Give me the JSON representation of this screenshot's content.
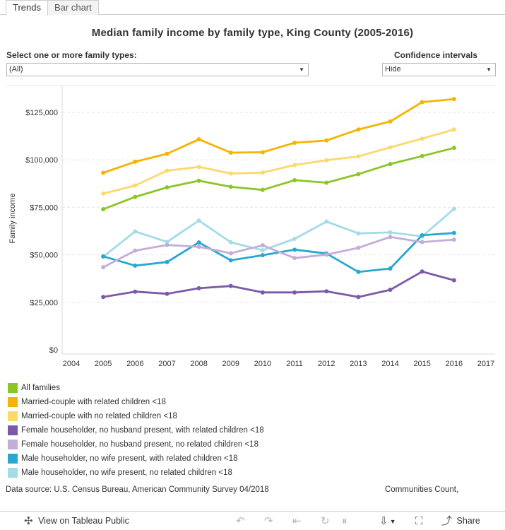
{
  "tabs": [
    {
      "label": "Trends"
    },
    {
      "label": "Bar chart"
    }
  ],
  "title": "Median family income by family type, King County (2005-2016)",
  "filters": {
    "family_label": "Select one or more family types:",
    "family_value": "(All)",
    "ci_label": "Confidence intervals",
    "ci_value": "Hide"
  },
  "chart_data": {
    "type": "line",
    "x": [
      2005,
      2006,
      2007,
      2008,
      2009,
      2010,
      2011,
      2012,
      2013,
      2014,
      2015,
      2016
    ],
    "xlim": [
      2004,
      2017
    ],
    "x_ticks": [
      "2004",
      "2005",
      "2006",
      "2007",
      "2008",
      "2009",
      "2010",
      "2011",
      "2012",
      "2013",
      "2014",
      "2015",
      "2016",
      "2017"
    ],
    "ylim": [
      0,
      140000
    ],
    "y_ticks": [
      "$0",
      "$25,000",
      "$50,000",
      "$75,000",
      "$100,000",
      "$125,000"
    ],
    "y_tick_values": [
      0,
      25000,
      50000,
      75000,
      100000,
      125000
    ],
    "ylabel": "Family income",
    "xlabel": "",
    "grid": "horizontal dashed",
    "legend_position": "bottom-left",
    "series": [
      {
        "name": "All families",
        "color": "#8cc626",
        "values": [
          74000,
          80500,
          85500,
          89000,
          85800,
          84200,
          89300,
          88000,
          92500,
          97800,
          102000,
          106300
        ]
      },
      {
        "name": "Married-couple with related children <18",
        "color": "#f5b402",
        "values": [
          93200,
          99000,
          103200,
          110800,
          103800,
          104000,
          109000,
          110200,
          116000,
          120200,
          130400,
          132000
        ]
      },
      {
        "name": "Married-couple with no related children <18",
        "color": "#fcd96b",
        "values": [
          82200,
          86500,
          94300,
          96300,
          92800,
          93300,
          97300,
          99800,
          101800,
          106600,
          111200,
          116000
        ]
      },
      {
        "name": "Female householder, no husband present, with related children <18",
        "color": "#7b59a8",
        "values": [
          27800,
          30600,
          29500,
          32400,
          33600,
          30200,
          30200,
          30800,
          27800,
          31600,
          41200,
          36600
        ]
      },
      {
        "name": "Female householder, no husband present, no related children <18",
        "color": "#c2aed6",
        "values": [
          43500,
          52200,
          55200,
          54200,
          50800,
          55000,
          48300,
          50100,
          53700,
          59400,
          56700,
          58000
        ]
      },
      {
        "name": "Male householder, no wife present, with related children <18",
        "color": "#2aa7d0",
        "values": [
          49200,
          44300,
          46200,
          56500,
          47100,
          49800,
          52700,
          50700,
          41000,
          42800,
          60300,
          61500
        ]
      },
      {
        "name": "Male householder, no wife present, no related children <18",
        "color": "#a3dbe6",
        "values": [
          49000,
          62300,
          56800,
          68000,
          56600,
          52400,
          58400,
          67500,
          61300,
          61800,
          59700,
          74200
        ]
      }
    ]
  },
  "footer": {
    "source": "Data source: U.S. Census Bureau, American Community Survey 04/2018",
    "credit": "Communities Count,"
  },
  "toolbar": {
    "view_label": "View on Tableau Public",
    "share_label": "Share"
  }
}
